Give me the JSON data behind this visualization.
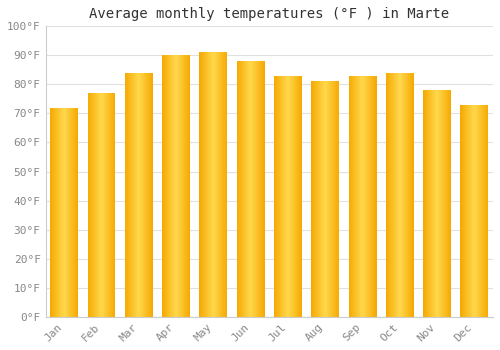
{
  "title": "Average monthly temperatures (°F ) in Marte",
  "months": [
    "Jan",
    "Feb",
    "Mar",
    "Apr",
    "May",
    "Jun",
    "Jul",
    "Aug",
    "Sep",
    "Oct",
    "Nov",
    "Dec"
  ],
  "values": [
    72,
    77,
    84,
    90,
    91,
    88,
    83,
    81,
    83,
    84,
    78,
    73
  ],
  "bar_color_center": "#FFD84D",
  "bar_color_edge": "#F5A800",
  "ylim": [
    0,
    100
  ],
  "yticks": [
    0,
    10,
    20,
    30,
    40,
    50,
    60,
    70,
    80,
    90,
    100
  ],
  "ytick_labels": [
    "0°F",
    "10°F",
    "20°F",
    "30°F",
    "40°F",
    "50°F",
    "60°F",
    "70°F",
    "80°F",
    "90°F",
    "100°F"
  ],
  "background_color": "#ffffff",
  "grid_color": "#e0e0e0",
  "title_fontsize": 10,
  "tick_fontsize": 8,
  "tick_color": "#888888",
  "font_family": "monospace",
  "bar_width": 0.75,
  "figsize": [
    5.0,
    3.5
  ],
  "dpi": 100
}
